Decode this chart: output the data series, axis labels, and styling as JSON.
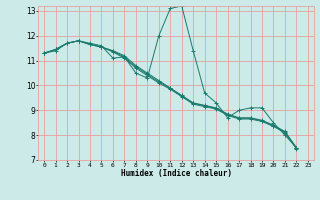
{
  "title": "",
  "xlabel": "Humidex (Indice chaleur)",
  "xlim": [
    -0.5,
    23.5
  ],
  "ylim": [
    7,
    13.2
  ],
  "yticks": [
    7,
    8,
    9,
    10,
    11,
    12,
    13
  ],
  "xticks": [
    0,
    1,
    2,
    3,
    4,
    5,
    6,
    7,
    8,
    9,
    10,
    11,
    12,
    13,
    14,
    15,
    16,
    17,
    18,
    19,
    20,
    21,
    22,
    23
  ],
  "bg_color": "#cceae7",
  "grid_color": "#e8a0a0",
  "line_color": "#1a7a6e",
  "series": [
    [
      11.3,
      11.4,
      11.7,
      11.8,
      11.7,
      11.6,
      11.1,
      11.15,
      10.5,
      10.3,
      12.0,
      13.1,
      13.2,
      11.4,
      9.7,
      9.3,
      8.7,
      9.0,
      9.1,
      9.1,
      8.5,
      8.0,
      7.5
    ],
    [
      11.3,
      11.45,
      11.7,
      11.8,
      11.65,
      11.55,
      11.4,
      11.2,
      10.8,
      10.5,
      10.2,
      9.9,
      9.6,
      9.3,
      9.2,
      9.1,
      8.85,
      8.7,
      8.7,
      8.6,
      8.4,
      8.15,
      7.5
    ],
    [
      11.3,
      11.45,
      11.7,
      11.8,
      11.65,
      11.55,
      11.38,
      11.15,
      10.75,
      10.45,
      10.15,
      9.88,
      9.58,
      9.28,
      9.18,
      9.08,
      8.82,
      8.68,
      8.68,
      8.58,
      8.38,
      8.12,
      7.48
    ],
    [
      11.3,
      11.45,
      11.7,
      11.8,
      11.65,
      11.55,
      11.35,
      11.1,
      10.7,
      10.4,
      10.1,
      9.85,
      9.55,
      9.25,
      9.15,
      9.05,
      8.8,
      8.65,
      8.65,
      8.55,
      8.35,
      8.1,
      7.45
    ]
  ]
}
